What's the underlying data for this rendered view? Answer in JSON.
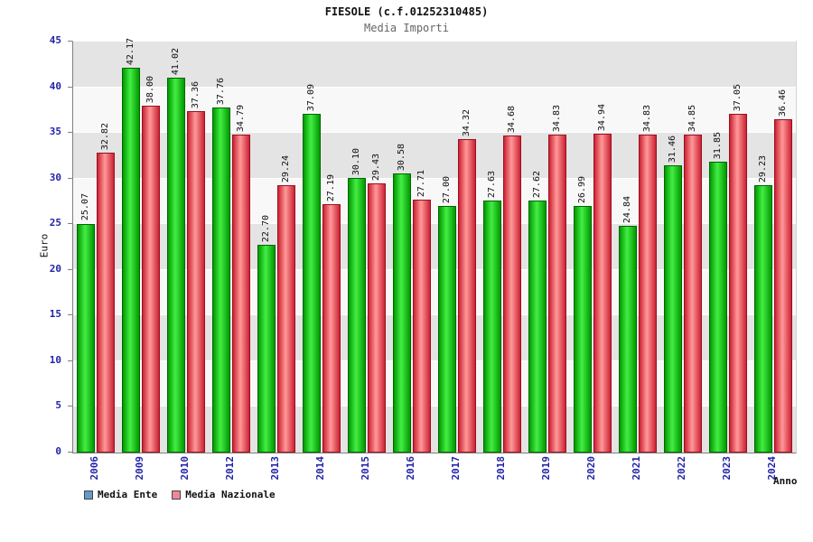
{
  "chart_data": {
    "type": "bar",
    "title": "FIESOLE (c.f.01252310485)",
    "subtitle": "Media Importi",
    "xlabel": "Anno",
    "ylabel": "Euro",
    "ylim": [
      0,
      45
    ],
    "ytick_step": 5,
    "grid": "horizontal-bands",
    "legend_position": "bottom-left",
    "categories": [
      "2006",
      "2009",
      "2010",
      "2012",
      "2013",
      "2014",
      "2015",
      "2016",
      "2017",
      "2018",
      "2019",
      "2020",
      "2021",
      "2022",
      "2023",
      "2024"
    ],
    "series": [
      {
        "name": "Media Ente",
        "legend_color": "#6699cc",
        "color_light": "#44ee44",
        "color_dark": "#009900",
        "edge_color": "#006600",
        "values": [
          25.07,
          42.17,
          41.02,
          37.76,
          22.7,
          37.09,
          30.1,
          30.58,
          27.0,
          27.63,
          27.62,
          26.99,
          24.84,
          31.46,
          31.85,
          29.23
        ]
      },
      {
        "name": "Media Nazionale",
        "legend_color": "#ee8899",
        "color_light": "#ff9999",
        "color_dark": "#cc2233",
        "edge_color": "#991122",
        "values": [
          32.82,
          38.0,
          37.36,
          34.79,
          29.24,
          27.19,
          29.43,
          27.71,
          34.32,
          34.68,
          34.83,
          34.94,
          34.83,
          34.85,
          37.05,
          36.46
        ]
      }
    ],
    "colors": {
      "axis_text": "#2222aa",
      "band_gray": "#e4e4e4",
      "band_light": "#f8f8f8",
      "value_label": "#111111"
    }
  }
}
